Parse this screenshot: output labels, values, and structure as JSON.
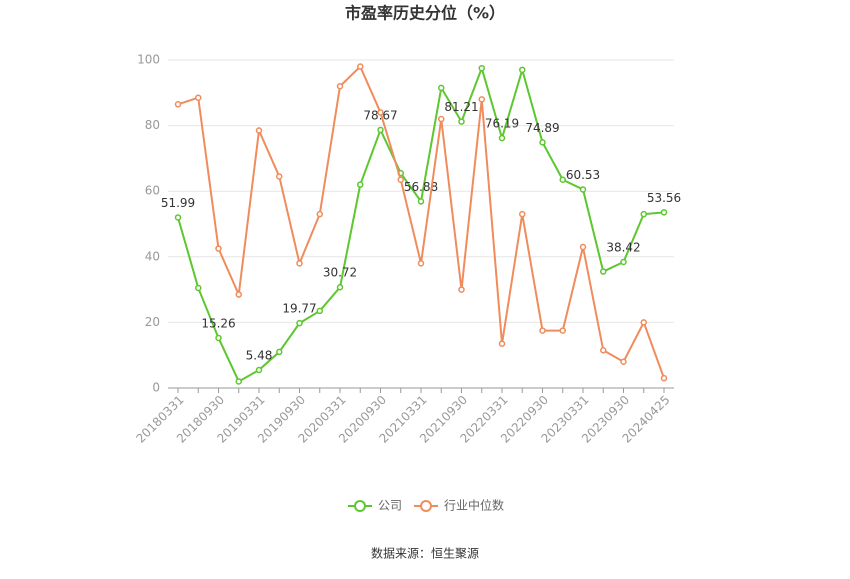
{
  "chart_data": {
    "type": "line",
    "title": "市盈率历史分位（%）",
    "source": "数据来源：恒生聚源",
    "categories": [
      "20180331",
      null,
      "20180930",
      null,
      "20190331",
      null,
      "20190930",
      null,
      "20200331",
      null,
      "20200930",
      null,
      "20210331",
      null,
      "20210930",
      null,
      "20220331",
      null,
      "20220930",
      null,
      "20230331",
      null,
      "20230930",
      null,
      "20240425"
    ],
    "series": [
      {
        "name": "公司",
        "color": "#5cc72e",
        "values": [
          51.99,
          30.5,
          15.26,
          2,
          5.48,
          11,
          19.77,
          23.5,
          30.72,
          62,
          78.67,
          65.5,
          56.88,
          91.5,
          81.21,
          97.5,
          76.19,
          97,
          74.89,
          63.5,
          60.53,
          35.5,
          38.42,
          53,
          53.56
        ],
        "value_labels": [
          "51.99",
          null,
          "15.26",
          null,
          "5.48",
          null,
          "19.77",
          null,
          "30.72",
          null,
          "78.67",
          null,
          "56.88",
          null,
          "81.21",
          null,
          "76.19",
          null,
          "74.89",
          null,
          "60.53",
          null,
          "38.42",
          null,
          "53.56"
        ]
      },
      {
        "name": "行业中位数",
        "color": "#f08c5c",
        "values": [
          86.5,
          88.5,
          42.5,
          28.5,
          78.5,
          64.5,
          38,
          53,
          92,
          98,
          84,
          63.5,
          38,
          82,
          30,
          88,
          13.5,
          53,
          17.5,
          17.5,
          43,
          11.5,
          8,
          20,
          3
        ]
      }
    ],
    "ylim": [
      0,
      100
    ],
    "yticks": [
      0,
      20,
      40,
      60,
      80,
      100
    ],
    "grid": true
  }
}
